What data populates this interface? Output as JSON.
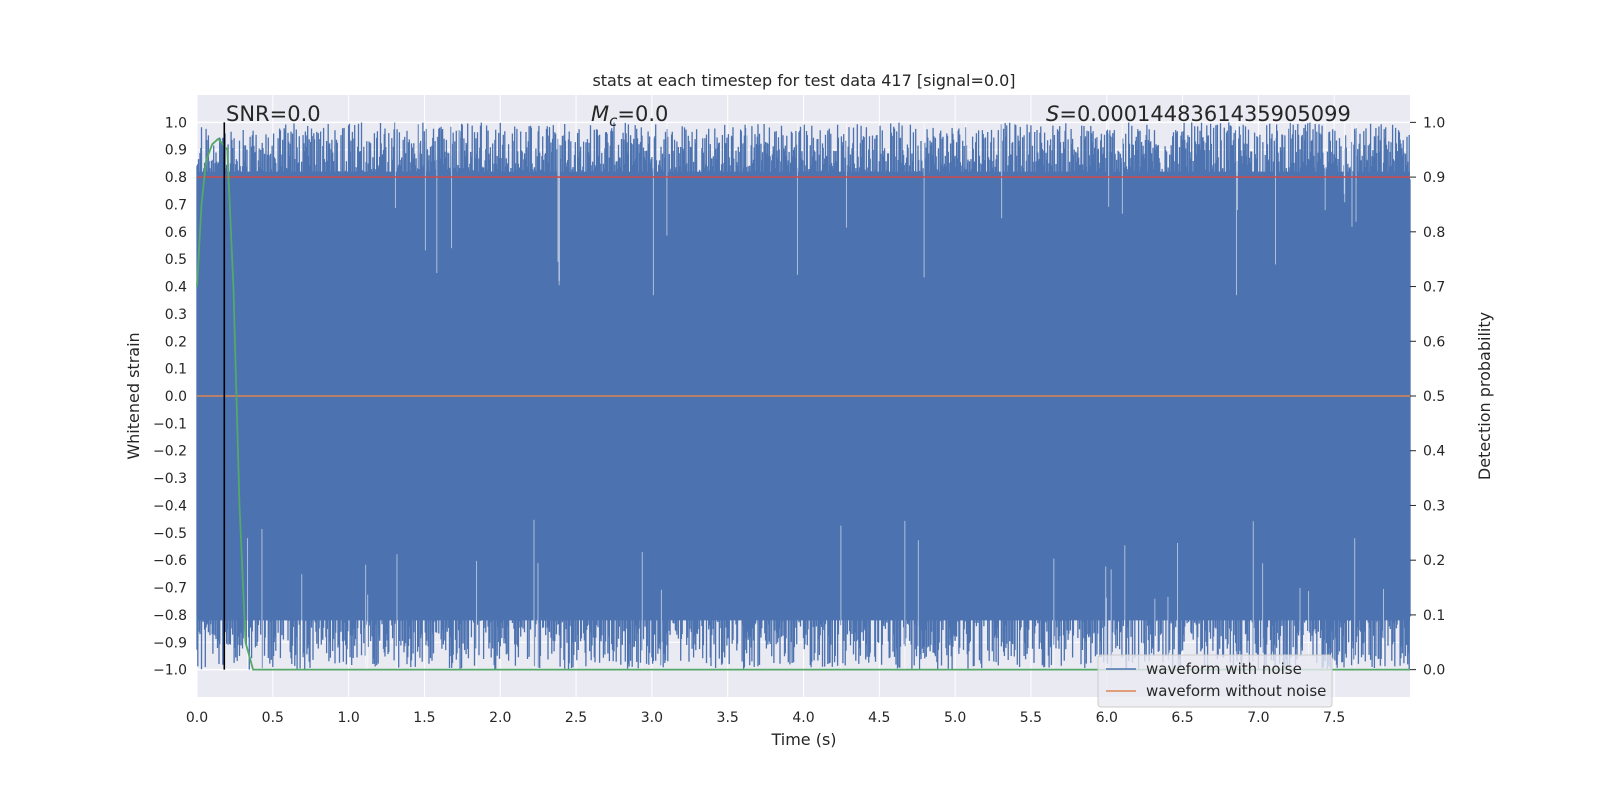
{
  "chart_data": {
    "type": "line",
    "title": "stats at each timestep for test data 417 [signal=0.0]",
    "xlabel": "Time (s)",
    "ylabel_left": "Whitened strain",
    "ylabel_right": "Detection probability",
    "xlim": [
      0.0,
      8.0
    ],
    "ylim_left": [
      -1.1,
      1.1
    ],
    "ylim_right": [
      -0.05,
      1.05
    ],
    "xticks": [
      "0.0",
      "0.5",
      "1.0",
      "1.5",
      "2.0",
      "2.5",
      "3.0",
      "3.5",
      "4.0",
      "4.5",
      "5.0",
      "5.5",
      "6.0",
      "6.5",
      "7.0",
      "7.5"
    ],
    "yticks_left": [
      "1.0",
      "0.9",
      "0.8",
      "0.7",
      "0.6",
      "0.5",
      "0.4",
      "0.3",
      "0.2",
      "0.1",
      "0.0",
      "−0.1",
      "−0.2",
      "−0.3",
      "−0.4",
      "−0.5",
      "−0.6",
      "−0.7",
      "−0.8",
      "−0.9",
      "−1.0"
    ],
    "yticks_right": [
      "1.0",
      "0.9",
      "0.8",
      "0.7",
      "0.6",
      "0.5",
      "0.4",
      "0.3",
      "0.2",
      "0.1",
      "0.0"
    ],
    "grid": true,
    "annotations": {
      "snr": "SNR=0.0",
      "mc_symbol": "M",
      "mc_sub": "c",
      "mc_value": "=0.0",
      "s_symbol": "S",
      "s_value": "=0.0001448361435905099"
    },
    "series": [
      {
        "name": "waveform with noise",
        "color": "#4c72b0",
        "axis": "left",
        "description_values": "dense noise between approximately -1.0 and 1.0 over 0 to 8 s"
      },
      {
        "name": "waveform without noise",
        "color": "#dd8452",
        "axis": "left",
        "x": [
          0.0,
          8.0
        ],
        "y": [
          0.0,
          0.0
        ]
      },
      {
        "name": "detection probability",
        "color": "#55a868",
        "axis": "right",
        "x": [
          0.0,
          0.03,
          0.06,
          0.1,
          0.14,
          0.17,
          0.2,
          0.24,
          0.28,
          0.32,
          0.37,
          0.5,
          8.0
        ],
        "y": [
          0.7,
          0.85,
          0.93,
          0.96,
          0.97,
          0.96,
          0.95,
          0.7,
          0.3,
          0.05,
          0.0,
          0.0,
          0.0
        ]
      }
    ],
    "threshold_line": {
      "axis": "right",
      "value": 0.9,
      "color": "#c44e52"
    },
    "marker_line": {
      "x": 0.18,
      "color": "#000000"
    },
    "legend": {
      "placement": "bottom-right",
      "entries": [
        {
          "label": "waveform with noise",
          "color": "#4c72b0"
        },
        {
          "label": "waveform without noise",
          "color": "#dd8452"
        }
      ]
    },
    "colors": {
      "axes_bg": "#eaeaf2",
      "grid": "#ffffff",
      "noise": "#4c72b0",
      "clean": "#dd8452",
      "prob": "#55a868",
      "threshold": "#c44e52"
    }
  }
}
